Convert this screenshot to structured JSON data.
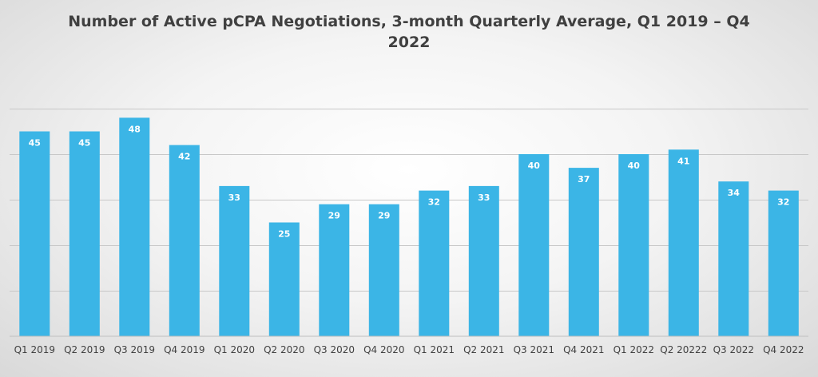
{
  "chart_data": {
    "type": "bar",
    "title": "Number of Active pCPA Negotiations, 3-month Quarterly Average, Q1 2019 – Q4 2022",
    "xlabel": "",
    "ylabel": "",
    "categories": [
      "Q1 2019",
      "Q2 2019",
      "Q3 2019",
      "Q4 2019",
      "Q1 2020",
      "Q2 2020",
      "Q3 2020",
      "Q4 2020",
      "Q1 2021",
      "Q2 2021",
      "Q3 2021",
      "Q4 2021",
      "Q1 2022",
      "Q2 20222",
      "Q3 2022",
      "Q4 2022"
    ],
    "values": [
      45,
      45,
      48,
      42,
      33,
      25,
      29,
      29,
      32,
      33,
      40,
      37,
      40,
      41,
      34,
      32
    ],
    "ylim": [
      0,
      60
    ],
    "gridlines": [
      10,
      20,
      30,
      40,
      50
    ],
    "grid": true,
    "legend": false,
    "bar_color": "#3bb5e6",
    "data_labels": true
  }
}
